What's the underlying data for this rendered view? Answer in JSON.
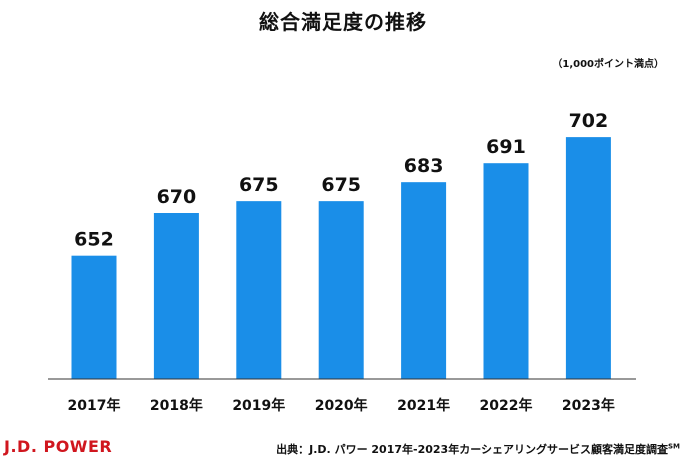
{
  "chart_data": {
    "type": "bar",
    "title": "総合満足度の推移",
    "unit_note": "（1,000ポイント満点）",
    "categories": [
      "2017年",
      "2018年",
      "2019年",
      "2020年",
      "2021年",
      "2022年",
      "2023年"
    ],
    "values": [
      652,
      670,
      675,
      675,
      683,
      691,
      702
    ],
    "xlabel": "",
    "ylabel": "",
    "ylim": [
      600,
      705
    ],
    "grid": false,
    "bar_color": "#1a8ee8"
  },
  "footer": {
    "logo": "J.D. POWER",
    "source": "出典：J.D. パワー 2017年-2023年カーシェアリングサービス顧客満足度調査",
    "source_mark": "SM"
  },
  "colors": {
    "brand_red": "#d0161e",
    "bar": "#1a8ee8"
  }
}
